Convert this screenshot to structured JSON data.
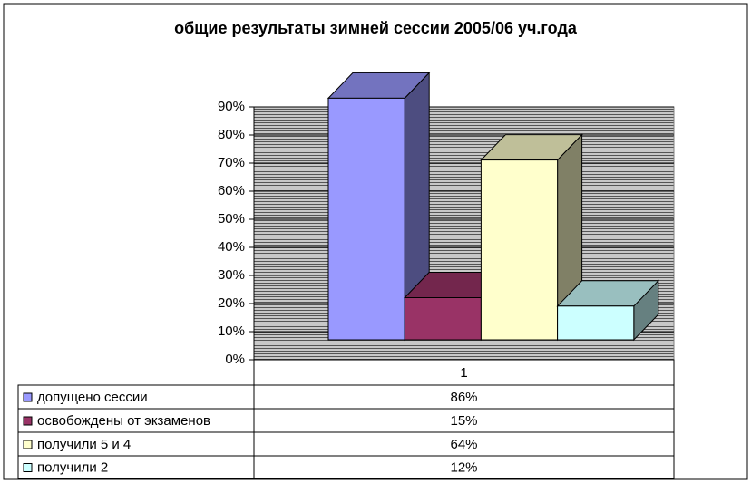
{
  "chart_data": {
    "type": "bar3d",
    "title": "общие результаты зимней сессии 2005/06 уч.года",
    "categories": [
      "1"
    ],
    "series": [
      {
        "name": "допущено сессии",
        "color": "#9999ff",
        "values": [
          86
        ],
        "value_labels": [
          "86%"
        ]
      },
      {
        "name": "освобождены от экзаменов",
        "color": "#993366",
        "values": [
          15
        ],
        "value_labels": [
          "15%"
        ]
      },
      {
        "name": "получили 5 и 4",
        "color": "#ffffcc",
        "values": [
          64
        ],
        "value_labels": [
          "64%"
        ]
      },
      {
        "name": "получили 2",
        "color": "#ccffff",
        "values": [
          12
        ],
        "value_labels": [
          "12%"
        ]
      }
    ],
    "ylim": [
      0,
      90
    ],
    "yticks": [
      {
        "value": 0,
        "label": "0%"
      },
      {
        "value": 10,
        "label": "10%"
      },
      {
        "value": 20,
        "label": "20%"
      },
      {
        "value": 30,
        "label": "30%"
      },
      {
        "value": 40,
        "label": "40%"
      },
      {
        "value": 50,
        "label": "50%"
      },
      {
        "value": 60,
        "label": "60%"
      },
      {
        "value": 70,
        "label": "70%"
      },
      {
        "value": 80,
        "label": "80%"
      },
      {
        "value": 90,
        "label": "90%"
      }
    ],
    "grid": true
  }
}
